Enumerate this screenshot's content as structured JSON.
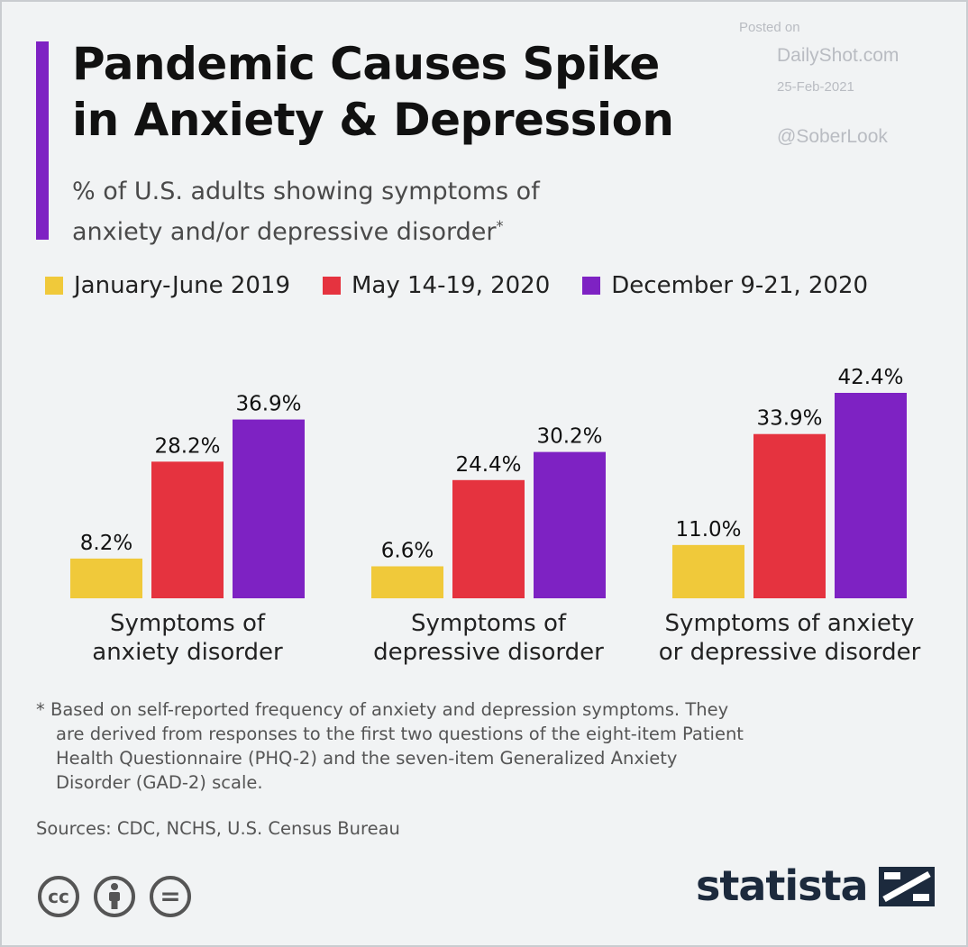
{
  "header": {
    "title_line1": "Pandemic Causes Spike",
    "title_line2": "in Anxiety & Depression",
    "subtitle_line1": "% of U.S. adults showing symptoms of",
    "subtitle_line2": "anxiety and/or depressive disorder",
    "subtitle_mark": "*"
  },
  "posted": {
    "label": "Posted on",
    "site": "DailyShot.com",
    "date": "25-Feb-2021",
    "handle": "@SoberLook"
  },
  "legend": [
    {
      "label": "January-June 2019",
      "color": "#f0c93a"
    },
    {
      "label": "May 14-19, 2020",
      "color": "#e5333f"
    },
    {
      "label": "December 9-21, 2020",
      "color": "#7e22c3"
    }
  ],
  "chart_data": {
    "type": "bar",
    "title": "Pandemic Causes Spike in Anxiety & Depression",
    "subtitle": "% of U.S. adults showing symptoms of anxiety and/or depressive disorder*",
    "categories": [
      [
        "Symptoms of",
        "anxiety disorder"
      ],
      [
        "Symptoms of",
        "depressive disorder"
      ],
      [
        "Symptoms of anxiety",
        "or depressive disorder"
      ]
    ],
    "series": [
      {
        "name": "January-June 2019",
        "values": [
          8.2,
          6.6,
          11.0
        ],
        "labels": [
          "8.2%",
          "6.6%",
          "11.0%"
        ]
      },
      {
        "name": "May 14-19, 2020",
        "values": [
          28.2,
          24.4,
          33.9
        ],
        "labels": [
          "28.2%",
          "24.4%",
          "33.9%"
        ]
      },
      {
        "name": "December 9-21, 2020",
        "values": [
          36.9,
          30.2,
          42.4
        ],
        "labels": [
          "36.9%",
          "30.2%",
          "42.4%"
        ]
      }
    ],
    "ylim": [
      0,
      42.4
    ],
    "xlabel": "",
    "ylabel": "",
    "grid": false,
    "legend_position": "top"
  },
  "footnote": {
    "line1": "* Based on self-reported frequency of anxiety and depression symptoms. They",
    "line2": "are derived from responses to the first two questions of the eight-item Patient",
    "line3": "Health Questionnaire (PHQ-2) and the seven-item Generalized Anxiety",
    "line4": "Disorder (GAD-2) scale."
  },
  "sources": "Sources: CDC, NCHS, U.S. Census Bureau",
  "license_icons": [
    "creative-commons-icon",
    "attribution-person-icon",
    "no-derivatives-icon"
  ],
  "license_icon_text": {
    "cc": "cc",
    "nd": "="
  },
  "brand": {
    "name": "statista",
    "color": "#1c2a3d"
  },
  "colors": {
    "accent": "#7e22c3",
    "title": "#111111"
  }
}
